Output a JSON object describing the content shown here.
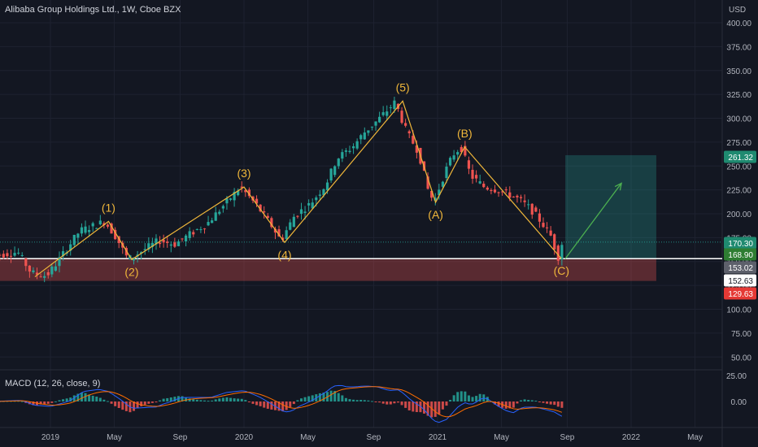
{
  "header": {
    "title": "Alibaba Group Holdings Ltd., 1W, Cboe BZX",
    "currency": "USD"
  },
  "macd": {
    "label": "MACD (12, 26, close, 9)",
    "ticks": [
      "25.00",
      "0.00"
    ]
  },
  "price_badges": [
    {
      "value": "261.32",
      "bg": "#1f8a70",
      "fg": "#ffffff",
      "price": 261.32
    },
    {
      "value": "170.30",
      "bg": "#1f8a70",
      "fg": "#ffffff",
      "price": 170.3
    },
    {
      "value": "168.90",
      "bg": "#2e7d32",
      "fg": "#ffffff",
      "price": 168.9
    },
    {
      "value": "153.02",
      "bg": "#5d606b",
      "fg": "#ffffff",
      "price": 153.02
    },
    {
      "value": "152.63",
      "bg": "#ffffff",
      "fg": "#131722",
      "price": 152.63
    },
    {
      "value": "129.63",
      "bg": "#e53935",
      "fg": "#ffffff",
      "price": 129.63
    }
  ],
  "colors": {
    "background": "#131722",
    "grid": "#1e2230",
    "up": "#26a69a",
    "down": "#ef5350",
    "wave": "#f0b73a",
    "target_arrow": "#4caf50",
    "macd_line": "#2962ff",
    "signal_line": "#ff6d00"
  },
  "chart_data": {
    "type": "candlestick",
    "title": "Alibaba Group Holdings Ltd., 1W, Cboe BZX",
    "y_axis": {
      "unit": "USD",
      "ticks": [
        "400.00",
        "375.00",
        "350.00",
        "325.00",
        "300.00",
        "275.00",
        "250.00",
        "225.00",
        "200.00",
        "175.00",
        "150.00",
        "125.00",
        "100.00",
        "75.00",
        "50.00"
      ],
      "range": [
        35,
        415
      ]
    },
    "x_axis": {
      "ticks": [
        {
          "label": "2019",
          "t": 2019.0
        },
        {
          "label": "May",
          "t": 2019.33
        },
        {
          "label": "Sep",
          "t": 2019.67
        },
        {
          "label": "2020",
          "t": 2020.0
        },
        {
          "label": "May",
          "t": 2020.33
        },
        {
          "label": "Sep",
          "t": 2020.67
        },
        {
          "label": "2021",
          "t": 2021.0
        },
        {
          "label": "May",
          "t": 2021.33
        },
        {
          "label": "Sep",
          "t": 2021.67
        },
        {
          "label": "2022",
          "t": 2022.0
        },
        {
          "label": "May",
          "t": 2022.33
        }
      ]
    },
    "price_path": [
      {
        "t": 2018.7,
        "p": 155
      },
      {
        "t": 2018.85,
        "p": 160
      },
      {
        "t": 2018.92,
        "p": 138
      },
      {
        "t": 2019.0,
        "p": 135
      },
      {
        "t": 2019.05,
        "p": 148
      },
      {
        "t": 2019.12,
        "p": 168
      },
      {
        "t": 2019.17,
        "p": 182
      },
      {
        "t": 2019.25,
        "p": 188
      },
      {
        "t": 2019.3,
        "p": 192
      },
      {
        "t": 2019.36,
        "p": 175
      },
      {
        "t": 2019.42,
        "p": 152
      },
      {
        "t": 2019.5,
        "p": 162
      },
      {
        "t": 2019.58,
        "p": 172
      },
      {
        "t": 2019.66,
        "p": 168
      },
      {
        "t": 2019.75,
        "p": 180
      },
      {
        "t": 2019.83,
        "p": 190
      },
      {
        "t": 2019.92,
        "p": 210
      },
      {
        "t": 2020.0,
        "p": 228
      },
      {
        "t": 2020.08,
        "p": 210
      },
      {
        "t": 2020.17,
        "p": 185
      },
      {
        "t": 2020.21,
        "p": 172
      },
      {
        "t": 2020.28,
        "p": 198
      },
      {
        "t": 2020.36,
        "p": 210
      },
      {
        "t": 2020.44,
        "p": 230
      },
      {
        "t": 2020.5,
        "p": 258
      },
      {
        "t": 2020.58,
        "p": 270
      },
      {
        "t": 2020.64,
        "p": 285
      },
      {
        "t": 2020.72,
        "p": 300
      },
      {
        "t": 2020.8,
        "p": 317
      },
      {
        "t": 2020.86,
        "p": 285
      },
      {
        "t": 2020.92,
        "p": 265
      },
      {
        "t": 2020.97,
        "p": 225
      },
      {
        "t": 2021.0,
        "p": 212
      },
      {
        "t": 2021.06,
        "p": 245
      },
      {
        "t": 2021.1,
        "p": 262
      },
      {
        "t": 2021.14,
        "p": 270
      },
      {
        "t": 2021.19,
        "p": 240
      },
      {
        "t": 2021.26,
        "p": 228
      },
      {
        "t": 2021.33,
        "p": 225
      },
      {
        "t": 2021.39,
        "p": 220
      },
      {
        "t": 2021.44,
        "p": 215
      },
      {
        "t": 2021.5,
        "p": 205
      },
      {
        "t": 2021.56,
        "p": 190
      },
      {
        "t": 2021.61,
        "p": 175
      },
      {
        "t": 2021.64,
        "p": 153
      },
      {
        "t": 2021.66,
        "p": 168.9
      }
    ],
    "elliott_wave": [
      {
        "label": "(1)",
        "t": 2019.3,
        "p": 192,
        "pos": "above"
      },
      {
        "label": "(2)",
        "t": 2019.42,
        "p": 152,
        "pos": "below"
      },
      {
        "label": "(3)",
        "t": 2020.0,
        "p": 228,
        "pos": "above"
      },
      {
        "label": "(4)",
        "t": 2020.21,
        "p": 170,
        "pos": "below"
      },
      {
        "label": "(5)",
        "t": 2020.82,
        "p": 318,
        "pos": "above"
      },
      {
        "label": "(A)",
        "t": 2020.99,
        "p": 212,
        "pos": "below"
      },
      {
        "label": "(B)",
        "t": 2021.14,
        "p": 270,
        "pos": "above"
      },
      {
        "label": "(C)",
        "t": 2021.64,
        "p": 153,
        "pos": "below"
      }
    ],
    "wave_start": {
      "t": 2018.92,
      "p": 134
    },
    "projection": {
      "from": {
        "t": 2021.66,
        "p": 153
      },
      "to": {
        "t": 2021.95,
        "p": 232
      }
    },
    "long_position": {
      "t_start": 2021.66,
      "t_end": 2022.13,
      "entry": 153.02,
      "target": 261.32,
      "stop": 129.63
    },
    "reference_lines": [
      {
        "p": 170.3
      },
      {
        "p": 153.02
      }
    ]
  }
}
